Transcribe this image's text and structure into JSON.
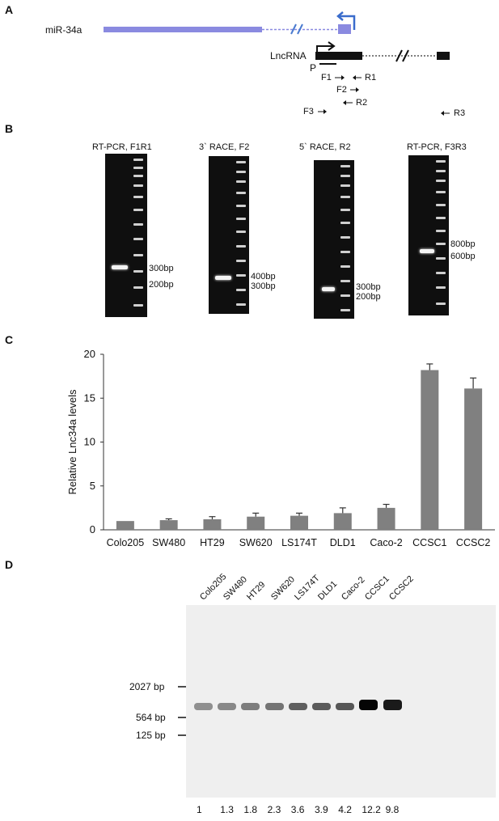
{
  "panels": {
    "A": "A",
    "B": "B",
    "C": "C",
    "D": "D"
  },
  "panelA": {
    "mir_label": "miR-34a",
    "lnc_label": "LncRNA",
    "promoter_label": "P",
    "primers": {
      "F1": "F1",
      "R1": "R1",
      "F2": "F2",
      "R2": "R2",
      "F3": "F3",
      "R3": "R3"
    },
    "colors": {
      "mir": "#7b7bd6",
      "arrow": "#4a7bd0",
      "lnc": "#111111"
    }
  },
  "panelB": {
    "gels": [
      {
        "title": "RT-PCR, F1R1",
        "markers": [
          "300bp",
          "200bp"
        ]
      },
      {
        "title": "3` RACE, F2",
        "markers": [
          "400bp",
          "300bp"
        ]
      },
      {
        "title": "5` RACE, R2",
        "markers": [
          "300bp",
          "200bp"
        ]
      },
      {
        "title": "RT-PCR, F3R3",
        "markers": [
          "800bp",
          "600bp"
        ]
      }
    ]
  },
  "chart_data": {
    "type": "bar",
    "categories": [
      "Colo205",
      "SW480",
      "HT29",
      "SW620",
      "LS174T",
      "DLD1",
      "Caco-2",
      "CCSC1",
      "CCSC2"
    ],
    "values": [
      1.0,
      1.1,
      1.2,
      1.5,
      1.6,
      1.9,
      2.5,
      18.2,
      16.1
    ],
    "errors": [
      0.0,
      0.15,
      0.3,
      0.4,
      0.3,
      0.6,
      0.4,
      0.7,
      1.2
    ],
    "ylabel": "Relative Lnc34a levels",
    "xlabel": "",
    "ylim": [
      0,
      20
    ],
    "yticks": [
      "0",
      "5",
      "10",
      "15",
      "20"
    ],
    "grid": false,
    "bar_color": "#808080"
  },
  "panelD": {
    "lanes": [
      "Colo205",
      "SW480",
      "HT29",
      "SW620",
      "LS174T",
      "DLD1",
      "Caco-2",
      "CCSC1",
      "CCSC2"
    ],
    "markers": [
      "2027 bp",
      "564 bp",
      "125 bp"
    ],
    "quant": [
      "1",
      "1.3",
      "1.8",
      "2.3",
      "3.6",
      "3.9",
      "4.2",
      "12.2",
      "9.8"
    ],
    "band_intensity": [
      1,
      1.3,
      1.8,
      2.3,
      3.6,
      3.9,
      4.2,
      12.2,
      9.8
    ]
  }
}
